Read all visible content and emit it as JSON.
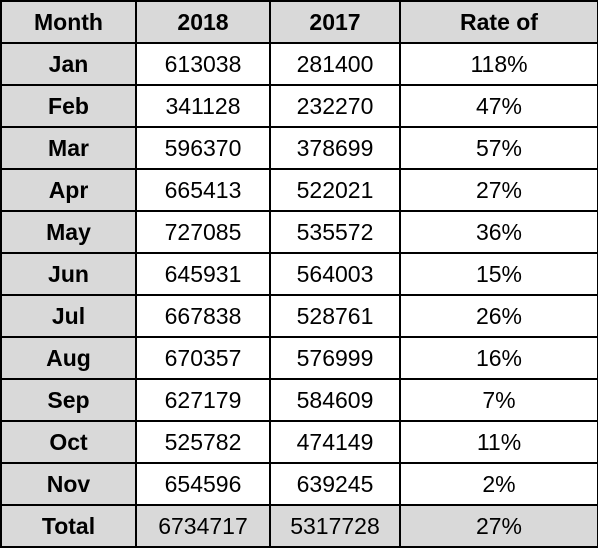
{
  "table": {
    "headers": [
      "Month",
      "2018",
      "2017",
      "Rate of"
    ],
    "rows": [
      [
        "Jan",
        "613038",
        "281400",
        "118%"
      ],
      [
        "Feb",
        "341128",
        "232270",
        "47%"
      ],
      [
        "Mar",
        "596370",
        "378699",
        "57%"
      ],
      [
        "Apr",
        "665413",
        "522021",
        "27%"
      ],
      [
        "May",
        "727085",
        "535572",
        "36%"
      ],
      [
        "Jun",
        "645931",
        "564003",
        "15%"
      ],
      [
        "Jul",
        "667838",
        "528761",
        "26%"
      ],
      [
        "Aug",
        "670357",
        "576999",
        "16%"
      ],
      [
        "Sep",
        "627179",
        "584609",
        "7%"
      ],
      [
        "Oct",
        "525782",
        "474149",
        "11%"
      ],
      [
        "Nov",
        "654596",
        "639245",
        "2%"
      ]
    ],
    "total": [
      "Total",
      "6734717",
      "5317728",
      "27%"
    ]
  },
  "colors": {
    "header_fill": "#d9d9d9",
    "cell_fill": "#ffffff",
    "border": "#000000"
  }
}
